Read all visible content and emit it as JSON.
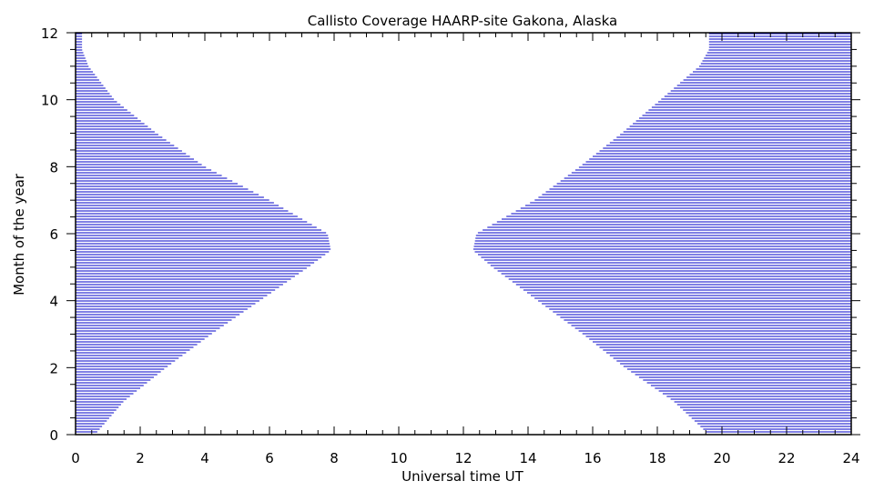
{
  "chart_data": {
    "type": "area",
    "title": "Callisto Coverage HAARP-site Gakona, Alaska",
    "xlabel": "Universal time UT",
    "ylabel": "Month of the year",
    "xlim": [
      0,
      24
    ],
    "ylim": [
      0,
      12
    ],
    "x_ticks": [
      0,
      2,
      4,
      6,
      8,
      10,
      12,
      14,
      16,
      18,
      20,
      22,
      24
    ],
    "y_ticks": [
      0,
      2,
      4,
      6,
      8,
      10,
      12
    ],
    "fill_color": "#0000c8",
    "hatch": "horizontal lines",
    "grid": false,
    "series": [
      {
        "months": [
          0,
          1,
          2,
          3,
          4,
          5,
          5.5,
          6,
          7,
          8,
          9,
          10,
          11,
          11.5,
          12
        ],
        "ut_end": [
          0.6,
          1.5,
          2.8,
          4.2,
          5.7,
          7.2,
          7.9,
          7.8,
          6.0,
          4.0,
          2.5,
          1.2,
          0.4,
          0.2,
          0.2
        ],
        "ut_start": [
          19.6,
          18.5,
          17.0,
          15.7,
          14.3,
          12.9,
          12.3,
          12.4,
          14.2,
          15.6,
          16.9,
          18.1,
          19.3,
          19.6,
          19.6
        ]
      }
    ]
  }
}
